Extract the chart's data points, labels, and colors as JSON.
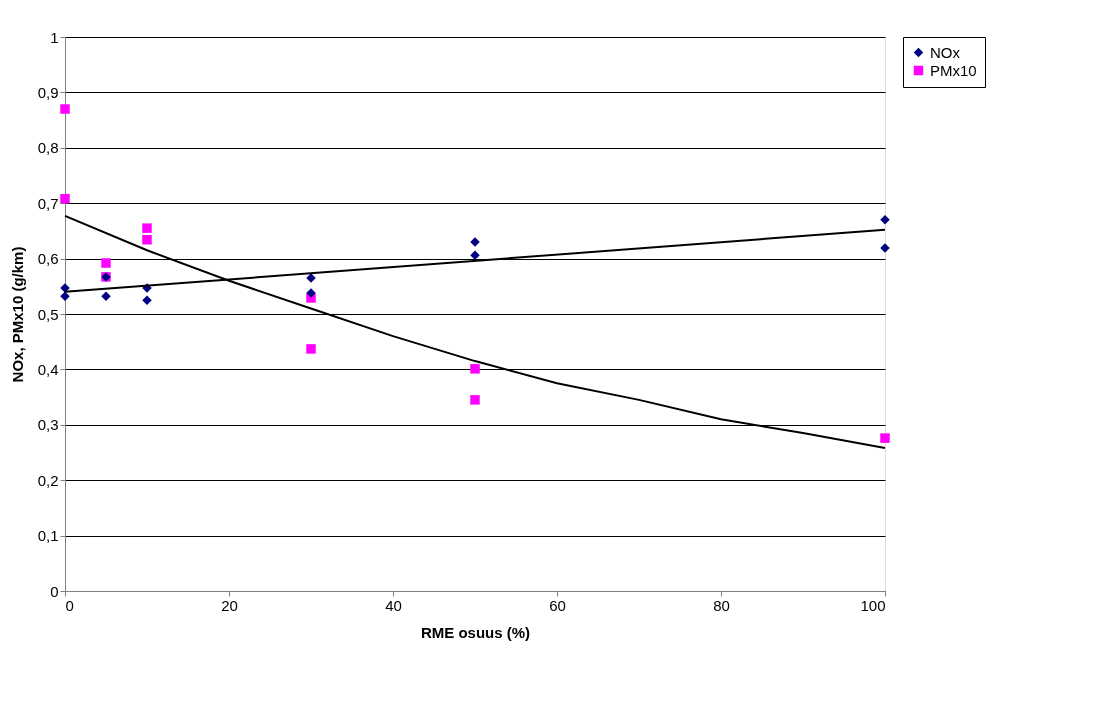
{
  "chart_data": {
    "type": "scatter",
    "xlabel": "RME osuus (%)",
    "ylabel": "NOx, PMx10 (g/km)",
    "xlim": [
      0,
      100
    ],
    "xticks": [
      0,
      20,
      40,
      60,
      80,
      100
    ],
    "ylim": [
      0,
      1
    ],
    "yticks": [
      {
        "value": 0,
        "label": "0"
      },
      {
        "value": 0.1,
        "label": "0,1"
      },
      {
        "value": 0.2,
        "label": "0,2"
      },
      {
        "value": 0.3,
        "label": "0,3"
      },
      {
        "value": 0.4,
        "label": "0,4"
      },
      {
        "value": 0.5,
        "label": "0,5"
      },
      {
        "value": 0.6,
        "label": "0,6"
      },
      {
        "value": 0.7,
        "label": "0,7"
      },
      {
        "value": 0.8,
        "label": "0,8"
      },
      {
        "value": 0.9,
        "label": "0,9"
      },
      {
        "value": 1,
        "label": "1"
      }
    ],
    "grid": "y",
    "legend": "right",
    "series": [
      {
        "name": "NOx",
        "color": "#000080",
        "marker": "diamond",
        "x": [
          0,
          0,
          5,
          5,
          10,
          10,
          30,
          30,
          50,
          50,
          100,
          100
        ],
        "values": [
          0.547,
          0.532,
          0.532,
          0.567,
          0.547,
          0.525,
          0.565,
          0.538,
          0.63,
          0.606,
          0.67,
          0.619
        ]
      },
      {
        "name": "PMx10",
        "color": "#ff00ff",
        "marker": "square",
        "x": [
          0,
          0,
          5,
          5,
          10,
          10,
          30,
          30,
          50,
          50,
          100
        ],
        "values": [
          0.87,
          0.708,
          0.592,
          0.567,
          0.655,
          0.634,
          0.529,
          0.437,
          0.401,
          0.345,
          0.276
        ]
      },
      {
        "type": "line",
        "color": "#000000",
        "x": [
          0,
          100
        ],
        "values": [
          0.54,
          0.652
        ]
      },
      {
        "type": "line",
        "color": "#000000",
        "x": [
          0,
          10,
          20,
          30,
          40,
          50,
          60,
          70,
          80,
          90,
          100
        ],
        "values": [
          0.677,
          0.615,
          0.56,
          0.51,
          0.46,
          0.415,
          0.375,
          0.345,
          0.31,
          0.285,
          0.258
        ]
      }
    ]
  }
}
